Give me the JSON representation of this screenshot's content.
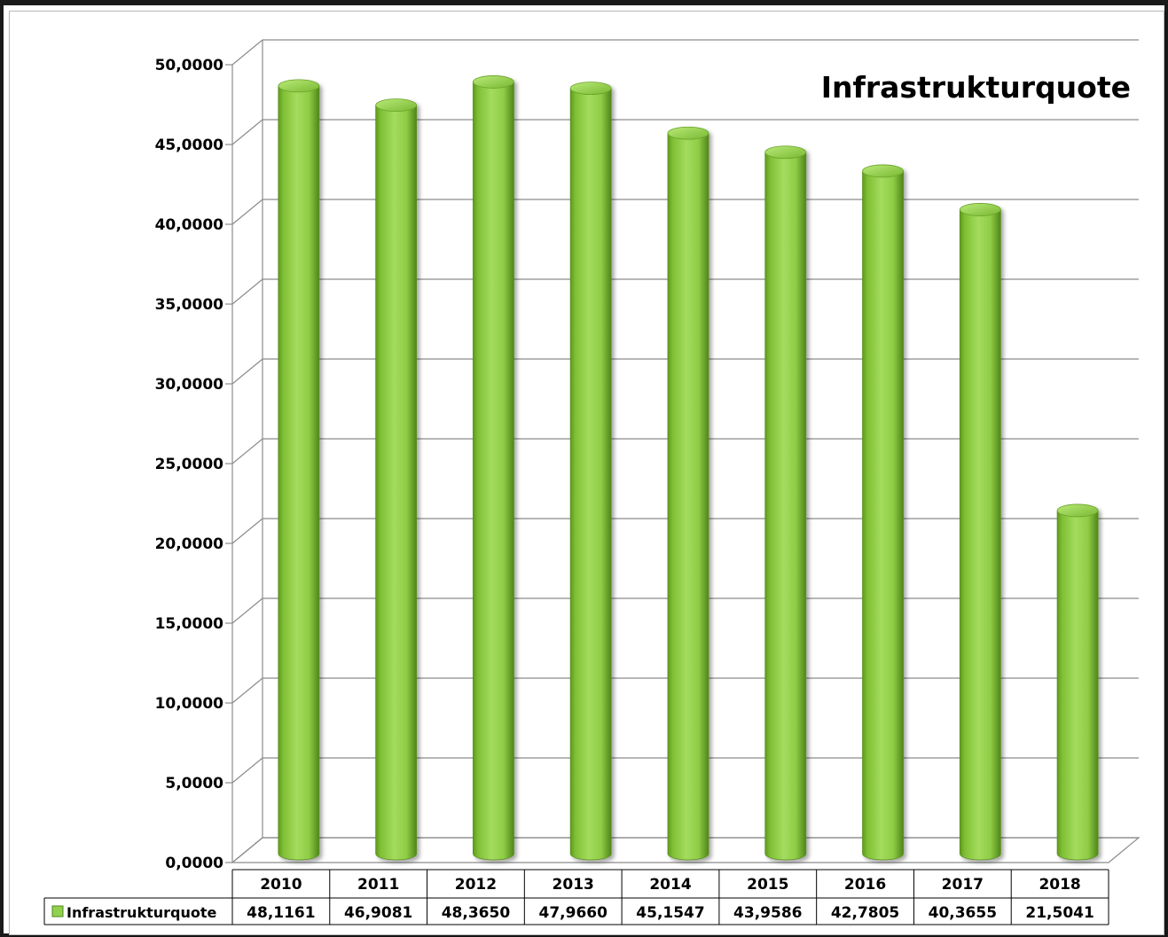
{
  "chart_data": {
    "type": "bar",
    "title": "Infrastrukturquote",
    "categories": [
      "2010",
      "2011",
      "2012",
      "2013",
      "2014",
      "2015",
      "2016",
      "2017",
      "2018"
    ],
    "series": [
      {
        "name": "Infrastrukturquote",
        "values": [
          48.1161,
          46.9081,
          48.365,
          47.966,
          45.1547,
          43.9586,
          42.7805,
          40.3655,
          21.5041
        ],
        "value_labels": [
          "48,1161",
          "46,9081",
          "48,3650",
          "47,9660",
          "45,1547",
          "43,9586",
          "42,7805",
          "40,3655",
          "21,5041"
        ],
        "color": "#92d050"
      }
    ],
    "y_ticks": [
      0,
      5,
      10,
      15,
      20,
      25,
      30,
      35,
      40,
      45,
      50
    ],
    "y_tick_labels": [
      "0,0000",
      "5,0000",
      "10,0000",
      "15,0000",
      "20,0000",
      "25,0000",
      "30,0000",
      "35,0000",
      "40,0000",
      "45,0000",
      "50,0000"
    ],
    "ylim": [
      0,
      50
    ],
    "grid": true,
    "legend": "data-table",
    "style": "3d-cylinder"
  }
}
